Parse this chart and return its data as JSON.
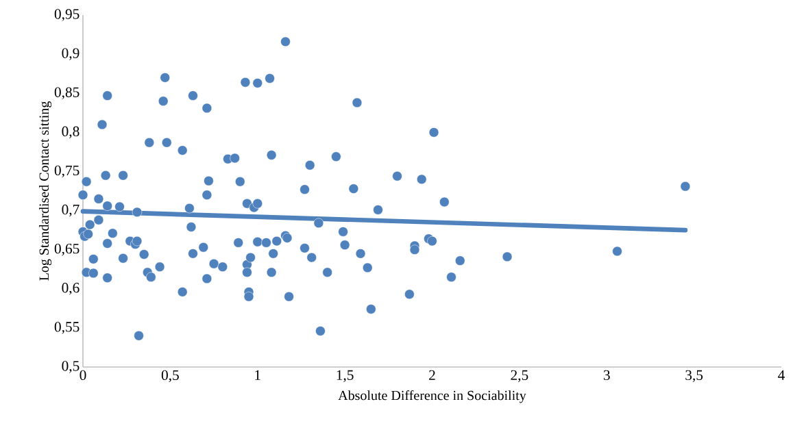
{
  "chart_data": {
    "type": "scatter",
    "xlabel": "Absolute Difference in Sociability",
    "ylabel": "Log Standardised Contact sitting",
    "xlim": [
      0,
      4
    ],
    "ylim": [
      0.5,
      0.95
    ],
    "xticks": [
      0,
      {
        "value": 0.5,
        "label": "0,5"
      },
      1,
      {
        "value": 1.5,
        "label": "1,5"
      },
      2,
      {
        "value": 2.5,
        "label": "2,5"
      },
      3,
      {
        "value": 3.5,
        "label": "3,5"
      },
      4
    ],
    "yticks": [
      {
        "value": 0.5,
        "label": "0,5"
      },
      {
        "value": 0.55,
        "label": "0,55"
      },
      {
        "value": 0.6,
        "label": "0,6"
      },
      {
        "value": 0.65,
        "label": "0,65"
      },
      {
        "value": 0.7,
        "label": "0,7"
      },
      {
        "value": 0.75,
        "label": "0,75"
      },
      {
        "value": 0.8,
        "label": "0,8"
      },
      {
        "value": 0.85,
        "label": "0,85"
      },
      {
        "value": 0.9,
        "label": "0,9"
      },
      {
        "value": 0.95,
        "label": "0,95"
      }
    ],
    "grid": false,
    "series": [
      {
        "color": "#4f81bd",
        "marker": "circle",
        "x": [
          0.0,
          0.02,
          0.0,
          0.01,
          0.03,
          0.04,
          0.02,
          0.06,
          0.06,
          0.09,
          0.09,
          0.11,
          0.13,
          0.14,
          0.14,
          0.14,
          0.14,
          0.17,
          0.21,
          0.23,
          0.23,
          0.27,
          0.3,
          0.31,
          0.31,
          0.32,
          0.35,
          0.37,
          0.38,
          0.39,
          0.44,
          0.46,
          0.47,
          0.48,
          0.57,
          0.57,
          0.61,
          0.62,
          0.63,
          0.63,
          0.69,
          0.71,
          0.71,
          0.72,
          0.71,
          0.75,
          0.8,
          0.83,
          0.87,
          0.89,
          0.9,
          0.93,
          0.94,
          0.94,
          0.94,
          0.95,
          0.95,
          0.96,
          0.98,
          1.0,
          1.0,
          1.0,
          1.05,
          1.07,
          1.08,
          1.08,
          1.09,
          1.11,
          1.16,
          1.16,
          1.17,
          1.18,
          1.27,
          1.27,
          1.3,
          1.31,
          1.35,
          1.36,
          1.4,
          1.45,
          1.49,
          1.5,
          1.55,
          1.57,
          1.59,
          1.63,
          1.65,
          1.69,
          1.8,
          1.87,
          1.9,
          1.9,
          1.94,
          1.98,
          2.0,
          2.01,
          2.07,
          2.11,
          2.16,
          2.43,
          3.06,
          3.45
        ],
        "values": [
          0.72,
          0.737,
          0.673,
          0.667,
          0.67,
          0.682,
          0.621,
          0.62,
          0.638,
          0.715,
          0.688,
          0.81,
          0.745,
          0.847,
          0.706,
          0.658,
          0.614,
          0.671,
          0.705,
          0.745,
          0.639,
          0.661,
          0.657,
          0.661,
          0.698,
          0.54,
          0.644,
          0.621,
          0.787,
          0.615,
          0.628,
          0.84,
          0.87,
          0.787,
          0.777,
          0.596,
          0.703,
          0.679,
          0.847,
          0.645,
          0.653,
          0.72,
          0.831,
          0.738,
          0.613,
          0.632,
          0.628,
          0.766,
          0.767,
          0.659,
          0.737,
          0.864,
          0.709,
          0.631,
          0.621,
          0.596,
          0.59,
          0.64,
          0.704,
          0.863,
          0.709,
          0.66,
          0.659,
          0.869,
          0.771,
          0.621,
          0.645,
          0.661,
          0.916,
          0.668,
          0.665,
          0.59,
          0.727,
          0.652,
          0.758,
          0.64,
          0.684,
          0.546,
          0.621,
          0.769,
          0.673,
          0.656,
          0.728,
          0.838,
          0.645,
          0.627,
          0.574,
          0.701,
          0.744,
          0.593,
          0.655,
          0.65,
          0.74,
          0.664,
          0.661,
          0.8,
          0.711,
          0.615,
          0.636,
          0.641,
          0.648,
          0.731
        ]
      },
      {
        "type": "line",
        "color": "#4f81bd",
        "marker": "none",
        "line_style": "solid",
        "x": [
          0,
          3.45
        ],
        "values": [
          0.699,
          0.675
        ]
      }
    ]
  }
}
